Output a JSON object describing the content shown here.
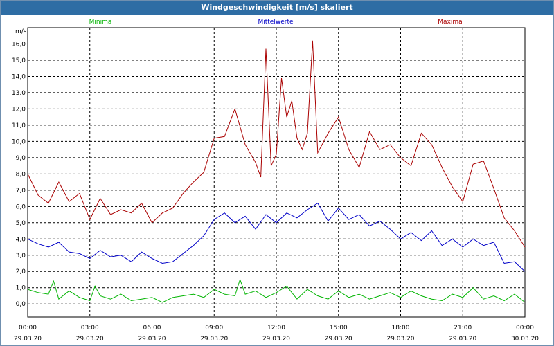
{
  "window": {
    "title": "Windgeschwindigkeit [m/s] skaliert"
  },
  "chart_data": {
    "type": "line",
    "title": "Windgeschwindigkeit [m/s] skaliert",
    "ylabel": "m/s",
    "ylim": [
      -0.8,
      17.0
    ],
    "xlim_hours": [
      0,
      24
    ],
    "grid": true,
    "legend_position": "top",
    "y_ticks": [
      "0,0",
      "1,0",
      "2,0",
      "3,0",
      "4,0",
      "5,0",
      "6,0",
      "7,0",
      "8,0",
      "9,0",
      "10,0",
      "11,0",
      "12,0",
      "13,0",
      "14,0",
      "15,0",
      "16,0"
    ],
    "x_ticks": [
      {
        "time": "00:00",
        "date": "29.03.20"
      },
      {
        "time": "03:00",
        "date": "29.03.20"
      },
      {
        "time": "06:00",
        "date": "29.03.20"
      },
      {
        "time": "09:00",
        "date": "29.03.20"
      },
      {
        "time": "12:00",
        "date": "29.03.20"
      },
      {
        "time": "15:00",
        "date": "29.03.20"
      },
      {
        "time": "18:00",
        "date": "29.03.20"
      },
      {
        "time": "21:00",
        "date": "29.03.20"
      },
      {
        "time": "00:00",
        "date": "30.03.20"
      }
    ],
    "series": [
      {
        "name": "Minima",
        "color": "#00b400",
        "x": [
          0,
          0.5,
          1,
          1.25,
          1.5,
          2,
          2.5,
          3,
          3.25,
          3.5,
          4,
          4.5,
          5,
          5.5,
          6,
          6.5,
          7,
          7.5,
          8,
          8.5,
          9,
          9.5,
          10,
          10.25,
          10.5,
          11,
          11.5,
          12,
          12.5,
          13,
          13.5,
          14,
          14.5,
          15,
          15.5,
          16,
          16.5,
          17,
          17.5,
          18,
          18.5,
          19,
          19.5,
          20,
          20.5,
          21,
          21.5,
          22,
          22.5,
          23,
          23.5,
          24
        ],
        "values": [
          0.9,
          0.7,
          0.6,
          1.4,
          0.3,
          0.8,
          0.4,
          0.2,
          1.1,
          0.5,
          0.3,
          0.6,
          0.2,
          0.3,
          0.4,
          0.1,
          0.4,
          0.5,
          0.6,
          0.4,
          0.9,
          0.6,
          0.5,
          1.5,
          0.6,
          0.8,
          0.4,
          0.7,
          1.1,
          0.3,
          0.9,
          0.5,
          0.3,
          0.8,
          0.4,
          0.6,
          0.3,
          0.5,
          0.7,
          0.4,
          0.8,
          0.5,
          0.3,
          0.2,
          0.6,
          0.4,
          1.0,
          0.3,
          0.5,
          0.2,
          0.6,
          0.1
        ]
      },
      {
        "name": "Mittelwerte",
        "color": "#0000c8",
        "x": [
          0,
          0.5,
          1,
          1.5,
          2,
          2.5,
          3,
          3.5,
          4,
          4.5,
          5,
          5.5,
          6,
          6.5,
          7,
          7.5,
          8,
          8.5,
          9,
          9.5,
          10,
          10.5,
          11,
          11.5,
          12,
          12.5,
          13,
          13.5,
          14,
          14.5,
          15,
          15.5,
          16,
          16.5,
          17,
          17.5,
          18,
          18.5,
          19,
          19.5,
          20,
          20.5,
          21,
          21.5,
          22,
          22.5,
          23,
          23.5,
          24
        ],
        "values": [
          4.0,
          3.7,
          3.5,
          3.8,
          3.2,
          3.1,
          2.8,
          3.3,
          2.9,
          3.0,
          2.6,
          3.2,
          2.8,
          2.5,
          2.6,
          3.1,
          3.6,
          4.2,
          5.2,
          5.6,
          5.0,
          5.4,
          4.6,
          5.5,
          5.0,
          5.6,
          5.3,
          5.8,
          6.2,
          5.1,
          5.9,
          5.2,
          5.5,
          4.8,
          5.1,
          4.6,
          4.0,
          4.4,
          3.9,
          4.5,
          3.6,
          4.0,
          3.5,
          4.0,
          3.6,
          3.8,
          2.5,
          2.6,
          2.0
        ]
      },
      {
        "name": "Maxima",
        "color": "#aa0000",
        "x": [
          0,
          0.5,
          1,
          1.5,
          2,
          2.5,
          3,
          3.5,
          4,
          4.5,
          5,
          5.5,
          6,
          6.5,
          7,
          7.5,
          8,
          8.5,
          9,
          9.5,
          10,
          10.5,
          11,
          11.25,
          11.5,
          11.75,
          12,
          12.25,
          12.5,
          12.75,
          13,
          13.25,
          13.5,
          13.75,
          14,
          14.5,
          15,
          15.5,
          16,
          16.5,
          17,
          17.5,
          18,
          18.5,
          19,
          19.5,
          20,
          20.5,
          21,
          21.5,
          22,
          22.5,
          23,
          23.5,
          24
        ],
        "values": [
          8.0,
          6.7,
          6.2,
          7.5,
          6.3,
          6.8,
          5.2,
          6.5,
          5.5,
          5.8,
          5.6,
          6.2,
          5.0,
          5.6,
          5.9,
          6.8,
          7.5,
          8.1,
          10.2,
          10.3,
          12.0,
          9.8,
          8.7,
          7.8,
          15.7,
          8.5,
          9.2,
          13.9,
          11.5,
          12.5,
          10.2,
          9.5,
          10.5,
          16.2,
          9.3,
          10.5,
          11.5,
          9.5,
          8.4,
          10.6,
          9.5,
          9.8,
          9.0,
          8.5,
          10.5,
          9.8,
          8.4,
          7.2,
          6.3,
          8.6,
          8.8,
          7.1,
          5.3,
          4.5,
          3.5
        ]
      }
    ]
  }
}
